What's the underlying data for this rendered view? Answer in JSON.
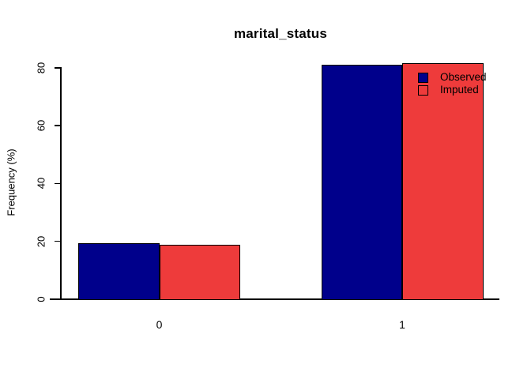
{
  "chart_data": {
    "type": "bar",
    "title": "marital_status",
    "xlabel": "",
    "ylabel": "Frequency (%)",
    "categories": [
      "0",
      "1"
    ],
    "series": [
      {
        "name": "Observed",
        "color": "#00008B",
        "values": [
          19.1,
          80.9
        ]
      },
      {
        "name": "Imputed",
        "color": "#EE3B3B",
        "values": [
          18.6,
          81.4
        ]
      }
    ],
    "y_ticks": [
      0,
      20,
      40,
      60,
      80
    ],
    "ylim": [
      0,
      82
    ],
    "grid": false,
    "legend_position": "inside-top-right",
    "legend": [
      {
        "label": "Observed",
        "swatch_color": "#00008B"
      },
      {
        "label": "Imputed",
        "swatch_color": "#EE3B3B"
      }
    ]
  },
  "colors": {
    "background": "#FFFFFF",
    "axis": "#000000",
    "text": "#000000",
    "bar_border": "#000000"
  }
}
